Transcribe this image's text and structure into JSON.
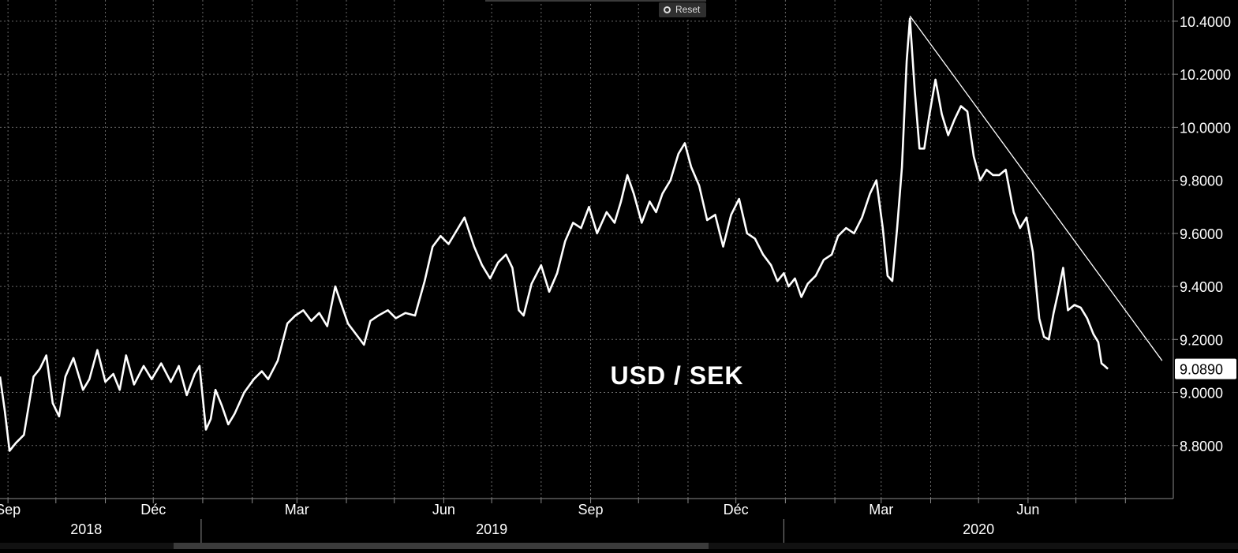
{
  "toolbar": {
    "reset_label": "Reset"
  },
  "colors": {
    "background": "#000000",
    "line": "#ffffff",
    "grid": "#6a6a6a",
    "axis": "#8a8a8a",
    "text": "#ffffff"
  },
  "chart_data": {
    "type": "line",
    "title": "USD / SEK",
    "ylim": [
      8.6,
      10.48
    ],
    "y_ticks": [
      8.8,
      9.0,
      9.2,
      9.4,
      9.6,
      9.8,
      10.0,
      10.2,
      10.4
    ],
    "y_tick_labels": [
      "8.8000",
      "9.0000",
      "9.2000",
      "9.4000",
      "9.6000",
      "9.8000",
      "10.0000",
      "10.2000",
      "10.4000"
    ],
    "last_value_label": "9.0890",
    "grid": true,
    "x_start": "2018-08-27",
    "x_end": "2020-08-31",
    "month_labels": [
      {
        "date": "2018-09-01",
        "label": "Sep"
      },
      {
        "date": "2018-12-01",
        "label": "Déc"
      },
      {
        "date": "2019-03-01",
        "label": "Mar"
      },
      {
        "date": "2019-06-01",
        "label": "Jun"
      },
      {
        "date": "2019-09-01",
        "label": "Sep"
      },
      {
        "date": "2019-12-01",
        "label": "Déc"
      },
      {
        "date": "2020-03-01",
        "label": "Mar"
      },
      {
        "date": "2020-06-01",
        "label": "Jun"
      }
    ],
    "month_ticks": [
      "2018-09-01",
      "2018-10-01",
      "2018-11-01",
      "2018-12-01",
      "2019-01-01",
      "2019-02-01",
      "2019-03-01",
      "2019-04-01",
      "2019-05-01",
      "2019-06-01",
      "2019-07-01",
      "2019-08-01",
      "2019-09-01",
      "2019-10-01",
      "2019-11-01",
      "2019-12-01",
      "2020-01-01",
      "2020-02-01",
      "2020-03-01",
      "2020-04-01",
      "2020-05-01",
      "2020-06-01",
      "2020-07-01",
      "2020-08-01"
    ],
    "year_labels": [
      {
        "date": "2018-10-20",
        "label": "2018"
      },
      {
        "date": "2019-07-01",
        "label": "2019"
      },
      {
        "date": "2020-05-01",
        "label": "2020"
      }
    ],
    "year_boundaries": [
      "2018-12-31",
      "2019-12-31"
    ],
    "series": [
      {
        "points": [
          [
            "2018-08-27",
            9.06
          ],
          [
            "2018-08-30",
            8.93
          ],
          [
            "2018-09-02",
            8.78
          ],
          [
            "2018-09-06",
            8.81
          ],
          [
            "2018-09-11",
            8.84
          ],
          [
            "2018-09-17",
            9.06
          ],
          [
            "2018-09-21",
            9.09
          ],
          [
            "2018-09-25",
            9.14
          ],
          [
            "2018-09-29",
            8.96
          ],
          [
            "2018-10-03",
            8.91
          ],
          [
            "2018-10-07",
            9.06
          ],
          [
            "2018-10-12",
            9.13
          ],
          [
            "2018-10-18",
            9.01
          ],
          [
            "2018-10-22",
            9.05
          ],
          [
            "2018-10-27",
            9.16
          ],
          [
            "2018-11-01",
            9.04
          ],
          [
            "2018-11-06",
            9.07
          ],
          [
            "2018-11-10",
            9.01
          ],
          [
            "2018-11-14",
            9.14
          ],
          [
            "2018-11-19",
            9.03
          ],
          [
            "2018-11-25",
            9.1
          ],
          [
            "2018-11-30",
            9.05
          ],
          [
            "2018-12-06",
            9.11
          ],
          [
            "2018-12-12",
            9.04
          ],
          [
            "2018-12-17",
            9.1
          ],
          [
            "2018-12-22",
            8.99
          ],
          [
            "2018-12-27",
            9.07
          ],
          [
            "2018-12-30",
            9.1
          ],
          [
            "2019-01-03",
            8.86
          ],
          [
            "2019-01-06",
            8.9
          ],
          [
            "2019-01-09",
            9.01
          ],
          [
            "2019-01-13",
            8.95
          ],
          [
            "2019-01-17",
            8.88
          ],
          [
            "2019-01-21",
            8.92
          ],
          [
            "2019-01-27",
            9.0
          ],
          [
            "2019-02-02",
            9.05
          ],
          [
            "2019-02-07",
            9.08
          ],
          [
            "2019-02-11",
            9.05
          ],
          [
            "2019-02-17",
            9.12
          ],
          [
            "2019-02-23",
            9.26
          ],
          [
            "2019-02-28",
            9.29
          ],
          [
            "2019-03-05",
            9.31
          ],
          [
            "2019-03-10",
            9.27
          ],
          [
            "2019-03-15",
            9.3
          ],
          [
            "2019-03-20",
            9.25
          ],
          [
            "2019-03-25",
            9.4
          ],
          [
            "2019-03-29",
            9.33
          ],
          [
            "2019-04-02",
            9.26
          ],
          [
            "2019-04-07",
            9.22
          ],
          [
            "2019-04-12",
            9.18
          ],
          [
            "2019-04-16",
            9.27
          ],
          [
            "2019-04-21",
            9.29
          ],
          [
            "2019-04-27",
            9.31
          ],
          [
            "2019-05-02",
            9.28
          ],
          [
            "2019-05-08",
            9.3
          ],
          [
            "2019-05-14",
            9.29
          ],
          [
            "2019-05-20",
            9.42
          ],
          [
            "2019-05-25",
            9.55
          ],
          [
            "2019-05-30",
            9.59
          ],
          [
            "2019-06-04",
            9.56
          ],
          [
            "2019-06-09",
            9.61
          ],
          [
            "2019-06-14",
            9.66
          ],
          [
            "2019-06-20",
            9.55
          ],
          [
            "2019-06-25",
            9.48
          ],
          [
            "2019-06-30",
            9.43
          ],
          [
            "2019-07-05",
            9.49
          ],
          [
            "2019-07-10",
            9.52
          ],
          [
            "2019-07-14",
            9.47
          ],
          [
            "2019-07-18",
            9.31
          ],
          [
            "2019-07-21",
            9.29
          ],
          [
            "2019-07-26",
            9.41
          ],
          [
            "2019-08-01",
            9.48
          ],
          [
            "2019-08-06",
            9.38
          ],
          [
            "2019-08-11",
            9.45
          ],
          [
            "2019-08-16",
            9.57
          ],
          [
            "2019-08-21",
            9.64
          ],
          [
            "2019-08-26",
            9.62
          ],
          [
            "2019-08-31",
            9.7
          ],
          [
            "2019-09-05",
            9.6
          ],
          [
            "2019-09-11",
            9.68
          ],
          [
            "2019-09-16",
            9.64
          ],
          [
            "2019-09-20",
            9.72
          ],
          [
            "2019-09-24",
            9.82
          ],
          [
            "2019-09-28",
            9.75
          ],
          [
            "2019-10-03",
            9.64
          ],
          [
            "2019-10-08",
            9.72
          ],
          [
            "2019-10-12",
            9.68
          ],
          [
            "2019-10-16",
            9.75
          ],
          [
            "2019-10-21",
            9.8
          ],
          [
            "2019-10-26",
            9.9
          ],
          [
            "2019-10-30",
            9.94
          ],
          [
            "2019-11-03",
            9.85
          ],
          [
            "2019-11-08",
            9.78
          ],
          [
            "2019-11-13",
            9.65
          ],
          [
            "2019-11-18",
            9.67
          ],
          [
            "2019-11-23",
            9.55
          ],
          [
            "2019-11-28",
            9.67
          ],
          [
            "2019-12-03",
            9.73
          ],
          [
            "2019-12-08",
            9.6
          ],
          [
            "2019-12-13",
            9.58
          ],
          [
            "2019-12-18",
            9.52
          ],
          [
            "2019-12-23",
            9.48
          ],
          [
            "2019-12-27",
            9.42
          ],
          [
            "2019-12-31",
            9.45
          ],
          [
            "2020-01-03",
            9.4
          ],
          [
            "2020-01-07",
            9.43
          ],
          [
            "2020-01-11",
            9.36
          ],
          [
            "2020-01-15",
            9.41
          ],
          [
            "2020-01-20",
            9.44
          ],
          [
            "2020-01-25",
            9.5
          ],
          [
            "2020-01-30",
            9.52
          ],
          [
            "2020-02-03",
            9.59
          ],
          [
            "2020-02-08",
            9.62
          ],
          [
            "2020-02-13",
            9.6
          ],
          [
            "2020-02-18",
            9.66
          ],
          [
            "2020-02-23",
            9.75
          ],
          [
            "2020-02-27",
            9.8
          ],
          [
            "2020-03-02",
            9.62
          ],
          [
            "2020-03-05",
            9.44
          ],
          [
            "2020-03-08",
            9.42
          ],
          [
            "2020-03-11",
            9.62
          ],
          [
            "2020-03-14",
            9.85
          ],
          [
            "2020-03-17",
            10.25
          ],
          [
            "2020-03-19",
            10.41
          ],
          [
            "2020-03-22",
            10.14
          ],
          [
            "2020-03-25",
            9.92
          ],
          [
            "2020-03-28",
            9.92
          ],
          [
            "2020-03-31",
            10.04
          ],
          [
            "2020-04-04",
            10.18
          ],
          [
            "2020-04-08",
            10.05
          ],
          [
            "2020-04-12",
            9.97
          ],
          [
            "2020-04-16",
            10.03
          ],
          [
            "2020-04-20",
            10.08
          ],
          [
            "2020-04-24",
            10.06
          ],
          [
            "2020-04-28",
            9.89
          ],
          [
            "2020-05-02",
            9.8
          ],
          [
            "2020-05-06",
            9.84
          ],
          [
            "2020-05-10",
            9.82
          ],
          [
            "2020-05-14",
            9.82
          ],
          [
            "2020-05-18",
            9.84
          ],
          [
            "2020-05-23",
            9.68
          ],
          [
            "2020-05-27",
            9.62
          ],
          [
            "2020-05-31",
            9.66
          ],
          [
            "2020-06-04",
            9.53
          ],
          [
            "2020-06-08",
            9.28
          ],
          [
            "2020-06-11",
            9.21
          ],
          [
            "2020-06-14",
            9.2
          ],
          [
            "2020-06-17",
            9.3
          ],
          [
            "2020-06-20",
            9.38
          ],
          [
            "2020-06-23",
            9.47
          ],
          [
            "2020-06-26",
            9.31
          ],
          [
            "2020-06-30",
            9.33
          ],
          [
            "2020-07-04",
            9.32
          ],
          [
            "2020-07-08",
            9.28
          ],
          [
            "2020-07-12",
            9.22
          ],
          [
            "2020-07-15",
            9.19
          ],
          [
            "2020-07-17",
            9.11
          ],
          [
            "2020-07-19",
            9.1
          ],
          [
            "2020-07-21",
            9.089
          ]
        ]
      }
    ],
    "trendline": [
      [
        "2020-03-19",
        10.42
      ],
      [
        "2020-08-24",
        9.12
      ]
    ]
  }
}
